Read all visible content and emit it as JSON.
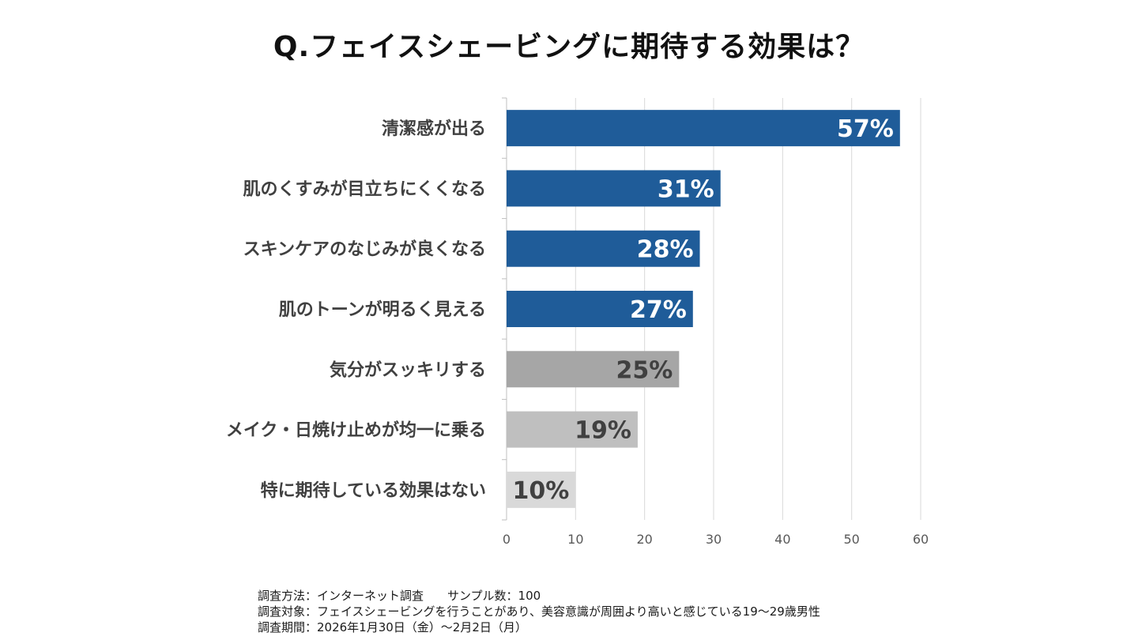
{
  "chart_data": {
    "type": "bar",
    "orientation": "horizontal",
    "title": "Q.フェイスシェービングに期待する効果は？",
    "categories": [
      "清潔感が出る",
      "肌のくすみが目立ちにくくなる",
      "スキンケアのなじみが良くなる",
      "肌のトーンが明るく見える",
      "気分がスッキリする",
      "メイク・日焼け止めが均一に乗る",
      "特に期待している効果はない"
    ],
    "values": [
      57,
      31,
      28,
      27,
      25,
      19,
      10
    ],
    "value_labels": [
      "57%",
      "31%",
      "28%",
      "27%",
      "25%",
      "19%",
      "10%"
    ],
    "colors": [
      "#1F5C99",
      "#1F5C99",
      "#1F5C99",
      "#1F5C99",
      "#A6A6A6",
      "#BFBFBF",
      "#D9D9D9"
    ],
    "label_colors": [
      "#ffffff",
      "#ffffff",
      "#ffffff",
      "#ffffff",
      "#404040",
      "#404040",
      "#404040"
    ],
    "xlim": [
      0,
      60
    ],
    "xticks": [
      0,
      10,
      20,
      30,
      40,
      50,
      60
    ],
    "xlabel": "",
    "ylabel": "",
    "grid": true
  },
  "footer": {
    "line1": "調査方法：インターネット調査　　サンプル数：100",
    "line2": "調査対象：フェイスシェービングを行うことがあり、美容意識が周囲より高いと感じている19～29歳男性",
    "line3": "調査期間：2026年1月30日（金）～2月2日（月）"
  }
}
